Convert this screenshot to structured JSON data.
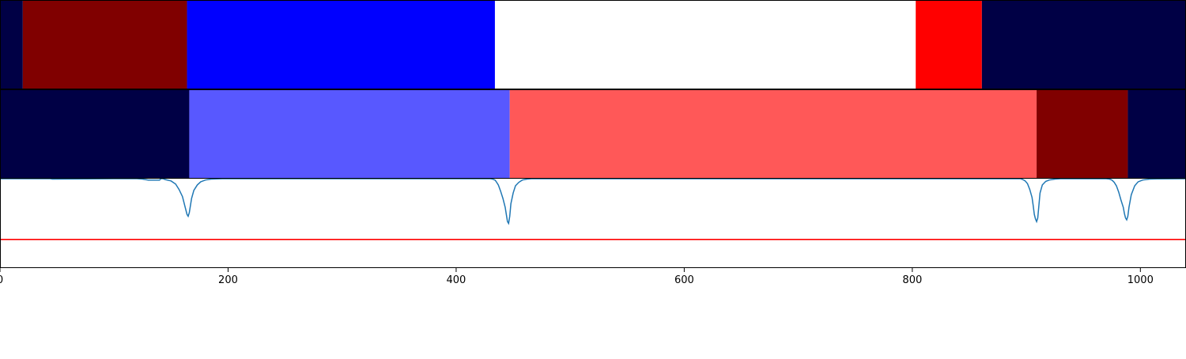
{
  "chart_data": [
    {
      "type": "heatmap",
      "panel": "segmentation-top",
      "xlim": [
        0,
        1040
      ],
      "segments": [
        {
          "start": 0,
          "end": 20,
          "color": "#000045"
        },
        {
          "start": 20,
          "end": 164,
          "color": "#800000"
        },
        {
          "start": 164,
          "end": 434,
          "color": "#0000ff"
        },
        {
          "start": 434,
          "end": 803,
          "color": "#ffffff"
        },
        {
          "start": 803,
          "end": 861,
          "color": "#ff0000"
        },
        {
          "start": 861,
          "end": 1040,
          "color": "#000045"
        }
      ]
    },
    {
      "type": "heatmap",
      "panel": "segmentation-middle",
      "xlim": [
        0,
        1040
      ],
      "segments": [
        {
          "start": 0,
          "end": 166,
          "color": "#000045"
        },
        {
          "start": 166,
          "end": 447,
          "color": "#5858ff"
        },
        {
          "start": 447,
          "end": 909,
          "color": "#ff5858"
        },
        {
          "start": 909,
          "end": 989,
          "color": "#800000"
        },
        {
          "start": 989,
          "end": 1040,
          "color": "#000045"
        }
      ]
    },
    {
      "type": "line",
      "panel": "score-bottom",
      "xlim": [
        0,
        1040
      ],
      "ylim": [
        0,
        1
      ],
      "series": [
        {
          "color": "#1f77b4",
          "x": [
            0,
            44,
            46,
            100,
            120,
            125,
            130,
            135,
            140,
            141,
            143,
            145,
            150,
            154,
            157,
            160,
            162,
            164,
            165,
            166,
            167,
            168,
            170,
            173,
            176,
            180,
            185,
            190,
            195,
            200,
            430,
            432,
            434,
            435,
            437,
            439,
            441,
            443,
            444,
            445,
            446,
            447,
            448,
            450,
            452,
            455,
            458,
            462,
            466,
            470,
            895,
            897,
            899,
            901,
            903,
            905,
            906,
            907,
            908,
            909,
            910,
            911,
            912,
            914,
            917,
            920,
            925,
            930,
            935,
            970,
            973,
            975,
            977,
            979,
            981,
            983,
            985,
            986,
            987,
            988,
            989,
            990,
            992,
            995,
            998,
            1002,
            1008,
            1015,
            1040
          ],
          "y": [
            1.0,
            1.0,
            0.995,
            1.0,
            1.0,
            0.995,
            0.985,
            0.985,
            0.985,
            1.0,
            1.0,
            0.99,
            0.975,
            0.94,
            0.88,
            0.8,
            0.7,
            0.6,
            0.58,
            0.62,
            0.7,
            0.78,
            0.87,
            0.93,
            0.965,
            0.985,
            0.995,
            0.998,
            1.0,
            1.0,
            1.0,
            0.995,
            0.985,
            0.97,
            0.93,
            0.86,
            0.78,
            0.68,
            0.6,
            0.52,
            0.5,
            0.58,
            0.72,
            0.84,
            0.92,
            0.96,
            0.985,
            0.995,
            1.0,
            1.0,
            1.0,
            0.99,
            0.975,
            0.945,
            0.88,
            0.79,
            0.7,
            0.6,
            0.55,
            0.52,
            0.56,
            0.7,
            0.84,
            0.93,
            0.97,
            0.985,
            0.995,
            1.0,
            1.0,
            1.0,
            0.995,
            0.985,
            0.96,
            0.92,
            0.85,
            0.76,
            0.68,
            0.61,
            0.56,
            0.54,
            0.58,
            0.68,
            0.82,
            0.92,
            0.965,
            0.985,
            0.995,
            0.998,
            1.0
          ]
        },
        {
          "color": "#ff0000",
          "x": [
            0,
            1040
          ],
          "y": [
            0.32,
            0.32
          ]
        }
      ],
      "xticks": [
        0,
        200,
        400,
        600,
        800,
        1000
      ],
      "xtick_labels": [
        "0",
        "200",
        "400",
        "600",
        "800",
        "1000"
      ]
    }
  ]
}
